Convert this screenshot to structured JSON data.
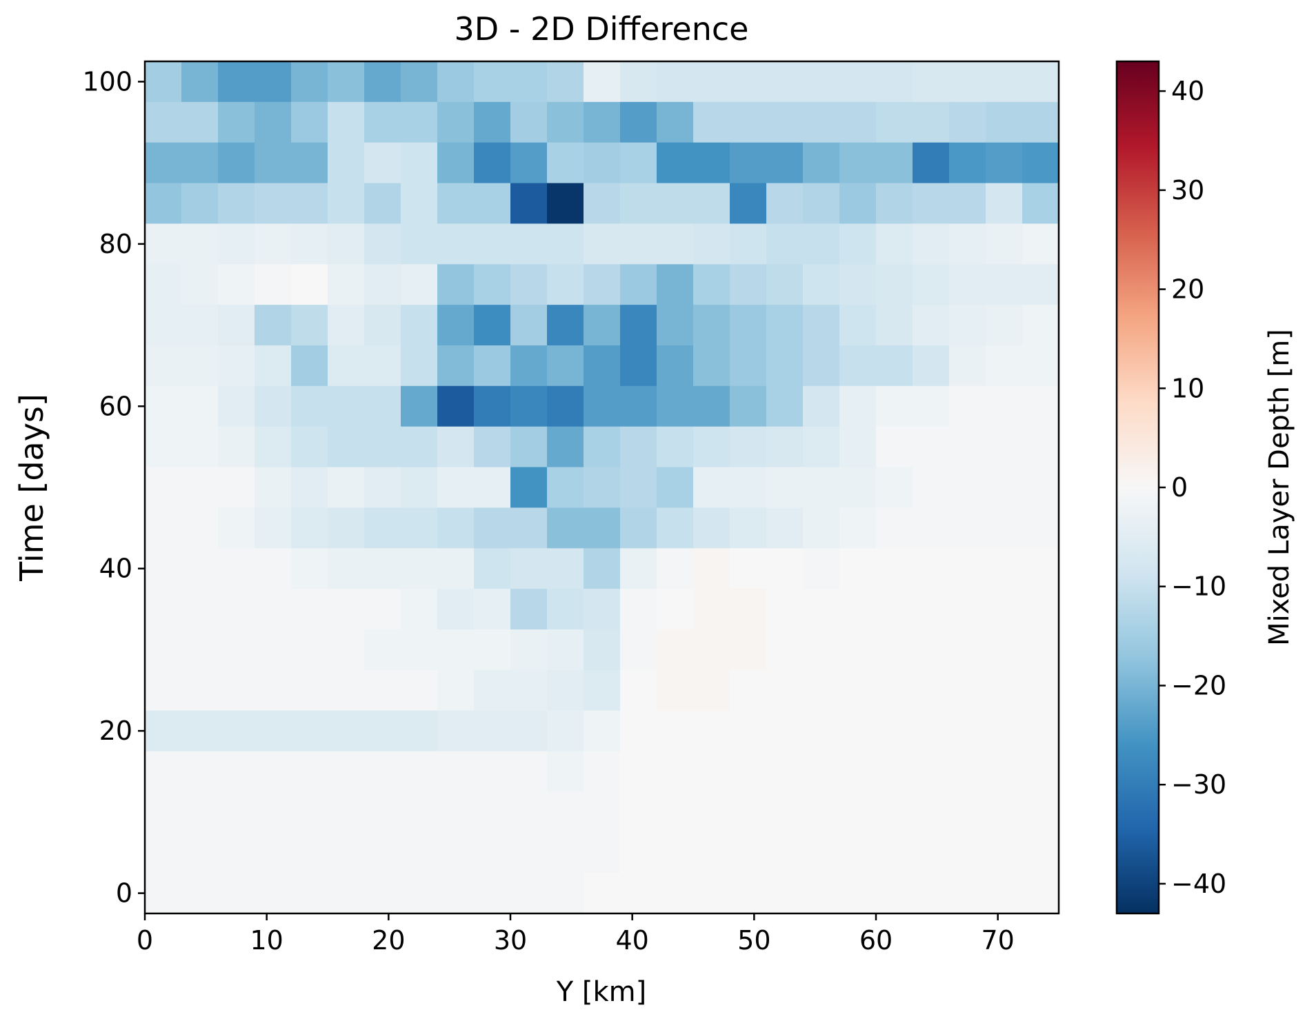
{
  "chart_data": {
    "type": "heatmap",
    "title": "3D - 2D Difference",
    "xlabel": "Y [km]",
    "ylabel": "Time [days]",
    "colorbar_label": "Mixed Layer Depth [m]",
    "colormap": "RdBu_r",
    "clim": [
      -43,
      43
    ],
    "xlim": [
      0,
      75
    ],
    "ylim": [
      -2.5,
      102.5
    ],
    "x_ticks": [
      0,
      10,
      20,
      30,
      40,
      50,
      60,
      70
    ],
    "y_ticks": [
      0,
      20,
      40,
      60,
      80,
      100
    ],
    "colorbar_ticks": [
      40,
      30,
      20,
      10,
      0,
      -10,
      -20,
      -30,
      -40
    ],
    "colorbar_tick_labels": [
      "40",
      "30",
      "20",
      "10",
      "0",
      "−10",
      "−20",
      "−30",
      "−40"
    ],
    "x_centers_km": [
      1.5,
      4.5,
      7.5,
      10.5,
      13.5,
      16.5,
      19.5,
      22.5,
      25.5,
      28.5,
      31.5,
      34.5,
      37.5,
      40.5,
      43.5,
      46.5,
      49.5,
      52.5,
      55.5,
      58.5,
      61.5,
      64.5,
      67.5,
      70.5,
      73.5
    ],
    "cell_width_km": 3,
    "time_days": [
      100,
      95,
      90,
      85,
      80,
      75,
      70,
      65,
      60,
      55,
      50,
      45,
      40,
      35,
      30,
      25,
      20,
      15,
      10,
      5,
      0
    ],
    "cell_height_days": 5,
    "values": [
      [
        -15,
        -20,
        -24,
        -24,
        -20,
        -18,
        -22,
        -20,
        -16,
        -14,
        -14,
        -13,
        -4,
        -7,
        -8,
        -8,
        -8,
        -8,
        -8,
        -8,
        -8,
        -7,
        -7,
        -7,
        -7
      ],
      [
        -13,
        -13,
        -18,
        -20,
        -16,
        -10,
        -14,
        -14,
        -18,
        -22,
        -15,
        -18,
        -20,
        -24,
        -20,
        -12,
        -12,
        -12,
        -12,
        -12,
        -11,
        -11,
        -12,
        -13,
        -13
      ],
      [
        -20,
        -20,
        -22,
        -20,
        -20,
        -10,
        -8,
        -9,
        -20,
        -28,
        -24,
        -14,
        -15,
        -14,
        -26,
        -26,
        -24,
        -24,
        -20,
        -18,
        -18,
        -30,
        -25,
        -24,
        -25
      ],
      [
        -17,
        -15,
        -13,
        -12,
        -12,
        -10,
        -13,
        -9,
        -14,
        -14,
        -36,
        -42,
        -12,
        -11,
        -11,
        -11,
        -28,
        -12,
        -13,
        -16,
        -13,
        -12,
        -12,
        -8,
        -14
      ],
      [
        -3,
        -3,
        -4,
        -3,
        -4,
        -5,
        -8,
        -9,
        -9,
        -9,
        -9,
        -9,
        -7,
        -7,
        -7,
        -8,
        -9,
        -10,
        -10,
        -9,
        -6,
        -5,
        -4,
        -3,
        -2
      ],
      [
        -4,
        -3,
        -2,
        -1,
        0,
        -3,
        -5,
        -4,
        -17,
        -14,
        -12,
        -10,
        -12,
        -16,
        -20,
        -14,
        -12,
        -11,
        -9,
        -8,
        -7,
        -6,
        -5,
        -5,
        -5
      ],
      [
        -4,
        -4,
        -5,
        -13,
        -11,
        -5,
        -7,
        -10,
        -22,
        -27,
        -15,
        -28,
        -20,
        -28,
        -20,
        -18,
        -16,
        -14,
        -12,
        -9,
        -7,
        -5,
        -4,
        -3,
        -2
      ],
      [
        -3,
        -3,
        -4,
        -6,
        -15,
        -6,
        -6,
        -10,
        -19,
        -16,
        -22,
        -20,
        -24,
        -28,
        -22,
        -18,
        -16,
        -14,
        -12,
        -10,
        -10,
        -8,
        -3,
        -2,
        -2
      ],
      [
        -2,
        -2,
        -5,
        -8,
        -10,
        -10,
        -10,
        -22,
        -36,
        -30,
        -28,
        -30,
        -24,
        -24,
        -22,
        -22,
        -18,
        -14,
        -8,
        -4,
        -2,
        -2,
        -1,
        -1,
        -1
      ],
      [
        -2,
        -2,
        -3,
        -6,
        -9,
        -10,
        -10,
        -10,
        -8,
        -12,
        -15,
        -22,
        -14,
        -12,
        -10,
        -9,
        -8,
        -7,
        -6,
        -4,
        -1,
        -1,
        -1,
        -1,
        -1
      ],
      [
        -1,
        -1,
        -1,
        -3,
        -5,
        -3,
        -5,
        -6,
        -4,
        -4,
        -26,
        -14,
        -13,
        -12,
        -14,
        -4,
        -4,
        -3,
        -3,
        -3,
        -2,
        -1,
        -1,
        -1,
        -1
      ],
      [
        -1,
        -1,
        -2,
        -4,
        -6,
        -7,
        -9,
        -9,
        -10,
        -12,
        -12,
        -18,
        -18,
        -13,
        -10,
        -8,
        -6,
        -5,
        -3,
        -2,
        -1,
        -1,
        -1,
        -1,
        -1
      ],
      [
        -1,
        -1,
        -1,
        -1,
        -2,
        -3,
        -3,
        -3,
        -3,
        -9,
        -8,
        -8,
        -13,
        -3,
        -1,
        1,
        0,
        0,
        -1,
        0,
        0,
        0,
        0,
        0,
        0
      ],
      [
        -1,
        -1,
        -1,
        -1,
        -1,
        -1,
        -1,
        -2,
        -5,
        -4,
        -12,
        -9,
        -8,
        -1,
        0,
        1,
        1,
        0,
        0,
        0,
        0,
        0,
        0,
        0,
        0
      ],
      [
        -1,
        -1,
        -1,
        -1,
        -1,
        -1,
        -2,
        -2,
        -2,
        -2,
        -3,
        -4,
        -7,
        -1,
        1,
        1,
        1,
        0,
        0,
        0,
        0,
        0,
        0,
        0,
        0
      ],
      [
        -1,
        -1,
        -1,
        -1,
        -1,
        -1,
        -1,
        -1,
        -2,
        -4,
        -4,
        -5,
        -6,
        0,
        1,
        1,
        0,
        0,
        0,
        0,
        0,
        0,
        0,
        0,
        0
      ],
      [
        -6,
        -6,
        -6,
        -6,
        -6,
        -6,
        -6,
        -6,
        -5,
        -5,
        -5,
        -4,
        -2,
        0,
        0,
        0,
        0,
        0,
        0,
        0,
        0,
        0,
        0,
        0,
        0
      ],
      [
        -1,
        -1,
        -1,
        -1,
        -1,
        -1,
        -1,
        -1,
        -1,
        -1,
        -1,
        -2,
        -1,
        0,
        0,
        0,
        0,
        0,
        0,
        0,
        0,
        0,
        0,
        0,
        0
      ],
      [
        -1,
        -1,
        -1,
        -1,
        -1,
        -1,
        -1,
        -1,
        -1,
        -1,
        -1,
        -1,
        -1,
        0,
        0,
        0,
        0,
        0,
        0,
        0,
        0,
        0,
        0,
        0,
        0
      ],
      [
        -1,
        -1,
        -1,
        -1,
        -1,
        -1,
        -1,
        -1,
        -1,
        -1,
        -1,
        -1,
        -1,
        0,
        0,
        0,
        0,
        0,
        0,
        0,
        0,
        0,
        0,
        0,
        0
      ],
      [
        -1,
        -1,
        -1,
        -1,
        -1,
        -1,
        -1,
        -1,
        -1,
        -1,
        -1,
        -1,
        0,
        0,
        0,
        0,
        0,
        0,
        0,
        0,
        0,
        0,
        0,
        0,
        0
      ]
    ]
  }
}
